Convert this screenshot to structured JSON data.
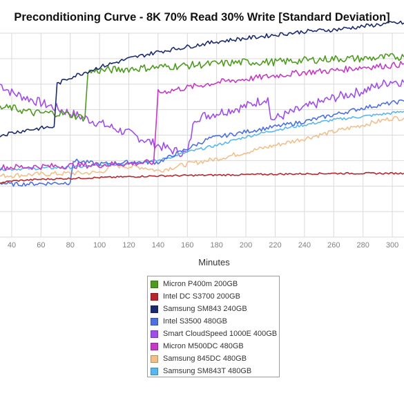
{
  "chart_data": {
    "type": "line",
    "title": "Preconditioning Curve - 8K 70% Read 30% Write [Standard Deviation]",
    "xlabel": "Minutes",
    "ylabel": "",
    "x_ticks": [
      40,
      60,
      80,
      100,
      120,
      140,
      160,
      180,
      200,
      220,
      240,
      260,
      280,
      300
    ],
    "xlim": [
      32,
      308
    ],
    "ylim": [
      0,
      12
    ],
    "grid": true,
    "legend_position": "bottom-center",
    "series": [
      {
        "name": "Micron P400m 200GB",
        "color": "#4e9a1e",
        "points": [
          [
            32,
            7.6
          ],
          [
            40,
            7.6
          ],
          [
            55,
            7.3
          ],
          [
            70,
            7.3
          ],
          [
            80,
            7.2
          ],
          [
            90,
            7.0
          ],
          [
            92,
            9.7
          ],
          [
            100,
            9.8
          ],
          [
            120,
            9.9
          ],
          [
            140,
            10.0
          ],
          [
            160,
            10.1
          ],
          [
            180,
            10.2
          ],
          [
            200,
            10.3
          ],
          [
            220,
            10.3
          ],
          [
            240,
            10.4
          ],
          [
            260,
            10.5
          ],
          [
            280,
            10.5
          ],
          [
            300,
            10.6
          ],
          [
            308,
            10.6
          ]
        ],
        "noise": 0.22
      },
      {
        "name": "Intel DC S3700 200GB",
        "color": "#b8262b",
        "points": [
          [
            32,
            3.2
          ],
          [
            40,
            3.3
          ],
          [
            60,
            3.4
          ],
          [
            80,
            3.45
          ],
          [
            100,
            3.5
          ],
          [
            140,
            3.6
          ],
          [
            180,
            3.65
          ],
          [
            220,
            3.7
          ],
          [
            260,
            3.75
          ],
          [
            300,
            3.75
          ],
          [
            308,
            3.75
          ]
        ],
        "noise": 0.05
      },
      {
        "name": "Samsung SM843 240GB",
        "color": "#1b2a6e",
        "points": [
          [
            32,
            6.0
          ],
          [
            50,
            6.3
          ],
          [
            69,
            6.5
          ],
          [
            71,
            9.0
          ],
          [
            80,
            9.4
          ],
          [
            100,
            10.0
          ],
          [
            120,
            10.5
          ],
          [
            140,
            10.9
          ],
          [
            160,
            11.2
          ],
          [
            180,
            11.5
          ],
          [
            200,
            11.7
          ],
          [
            220,
            11.9
          ],
          [
            240,
            12.1
          ],
          [
            260,
            12.2
          ],
          [
            280,
            12.4
          ],
          [
            300,
            12.6
          ],
          [
            308,
            12.6
          ]
        ],
        "noise": 0.12
      },
      {
        "name": "Intel S3500 480GB",
        "color": "#4d6fe0",
        "points": [
          [
            32,
            3.2
          ],
          [
            40,
            3.1
          ],
          [
            60,
            3.15
          ],
          [
            80,
            3.2
          ],
          [
            82,
            4.5
          ],
          [
            100,
            4.3
          ],
          [
            120,
            4.4
          ],
          [
            140,
            4.4
          ],
          [
            155,
            5.0
          ],
          [
            165,
            5.4
          ],
          [
            175,
            5.8
          ],
          [
            200,
            6.2
          ],
          [
            220,
            6.5
          ],
          [
            240,
            6.8
          ],
          [
            260,
            7.2
          ],
          [
            280,
            7.6
          ],
          [
            300,
            7.9
          ],
          [
            308,
            8.0
          ]
        ],
        "noise": 0.12
      },
      {
        "name": "Smart CloudSpeed 1000E 400GB",
        "color": "#a04de8",
        "points": [
          [
            32,
            9.0
          ],
          [
            40,
            8.5
          ],
          [
            60,
            7.9
          ],
          [
            80,
            7.3
          ],
          [
            100,
            6.7
          ],
          [
            120,
            6.1
          ],
          [
            140,
            5.4
          ],
          [
            150,
            5.1
          ],
          [
            160,
            4.9
          ],
          [
            165,
            7.0
          ],
          [
            180,
            7.3
          ],
          [
            200,
            7.7
          ],
          [
            215,
            8.2
          ],
          [
            217,
            6.9
          ],
          [
            240,
            7.6
          ],
          [
            260,
            8.2
          ],
          [
            280,
            8.6
          ],
          [
            300,
            9.2
          ],
          [
            308,
            9.1
          ]
        ],
        "noise": 0.28
      },
      {
        "name": "Micron M500DC 480GB",
        "color": "#c43ac4",
        "points": [
          [
            32,
            4.1
          ],
          [
            60,
            4.15
          ],
          [
            100,
            4.25
          ],
          [
            137,
            4.4
          ],
          [
            140,
            8.5
          ],
          [
            160,
            8.8
          ],
          [
            180,
            9.1
          ],
          [
            200,
            9.3
          ],
          [
            220,
            9.5
          ],
          [
            240,
            9.7
          ],
          [
            260,
            9.8
          ],
          [
            280,
            10.0
          ],
          [
            300,
            10.1
          ],
          [
            308,
            10.2
          ]
        ],
        "noise": 0.18
      },
      {
        "name": "Samsung 845DC 480GB",
        "color": "#f0c08c",
        "points": [
          [
            32,
            3.6
          ],
          [
            60,
            3.7
          ],
          [
            100,
            3.8
          ],
          [
            110,
            4.2
          ],
          [
            130,
            4.1
          ],
          [
            140,
            3.9
          ],
          [
            160,
            4.3
          ],
          [
            180,
            4.6
          ],
          [
            200,
            5.0
          ],
          [
            220,
            5.4
          ],
          [
            240,
            5.8
          ],
          [
            260,
            6.2
          ],
          [
            280,
            6.6
          ],
          [
            300,
            7.0
          ],
          [
            308,
            7.0
          ]
        ],
        "noise": 0.14
      },
      {
        "name": "Samsung SM843T 480GB",
        "color": "#58b7ee",
        "points": [
          [
            32,
            4.0
          ],
          [
            40,
            4.0
          ],
          [
            60,
            4.05
          ],
          [
            80,
            4.1
          ],
          [
            100,
            4.2
          ],
          [
            140,
            4.5
          ],
          [
            160,
            5.0
          ],
          [
            180,
            5.4
          ],
          [
            200,
            5.9
          ],
          [
            220,
            6.3
          ],
          [
            240,
            6.6
          ],
          [
            260,
            6.9
          ],
          [
            280,
            7.1
          ],
          [
            300,
            7.3
          ],
          [
            308,
            7.4
          ]
        ],
        "noise": 0.08
      }
    ]
  }
}
